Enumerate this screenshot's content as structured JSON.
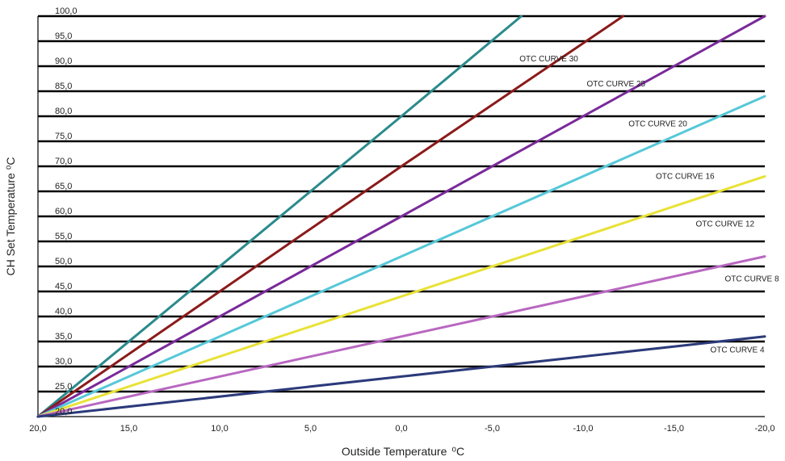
{
  "chart_data": {
    "type": "line",
    "xlabel": "Outside Temperature",
    "xlabel_unit": "⁰C",
    "ylabel": "CH Set Temperature",
    "ylabel_unit": "⁰C",
    "xlim": [
      20,
      -20
    ],
    "ylim": [
      20,
      100
    ],
    "x_ticks": [
      20,
      15,
      10,
      5,
      0,
      -5,
      -10,
      -15,
      -20
    ],
    "x_tick_labels": [
      "20,0",
      "15,0",
      "10,0",
      "5,0",
      "0,0",
      "-5,0",
      "-10,0",
      "-15,0",
      "-20,0"
    ],
    "y_ticks": [
      20,
      25,
      30,
      35,
      40,
      45,
      50,
      55,
      60,
      65,
      70,
      75,
      80,
      85,
      90,
      95,
      100
    ],
    "y_tick_labels": [
      "20,0",
      "25,0",
      "30,0",
      "35,0",
      "40,0",
      "45,0",
      "50,0",
      "55,0",
      "60,0",
      "65,0",
      "70,0",
      "75,0",
      "80,0",
      "85,0",
      "90,0",
      "95,0",
      "100,0"
    ],
    "grid": true,
    "series": [
      {
        "name": "OTC CURVE 30",
        "color": "#2a8a8c",
        "label_at": [
          -6.5,
          91
        ],
        "x": [
          20,
          0,
          -6.6
        ],
        "y": [
          20,
          80,
          100
        ]
      },
      {
        "name": "OTC CURVE 25",
        "color": "#8b1a1a",
        "label_at": [
          -10.2,
          86
        ],
        "x": [
          20,
          0,
          -12.2
        ],
        "y": [
          20,
          70,
          100
        ]
      },
      {
        "name": "OTC CURVE 20",
        "color": "#7a2a9a",
        "label_at": [
          -12.5,
          78
        ],
        "x": [
          20,
          0,
          -20
        ],
        "y": [
          20,
          60,
          100
        ]
      },
      {
        "name": "OTC CURVE 16",
        "color": "#55c8d8",
        "label_at": [
          -14,
          67.5
        ],
        "x": [
          20,
          0,
          -20
        ],
        "y": [
          20,
          52,
          84
        ]
      },
      {
        "name": "OTC CURVE 12",
        "color": "#e8e236",
        "label_at": [
          -16.2,
          58
        ],
        "x": [
          20,
          0,
          -20
        ],
        "y": [
          20,
          44,
          68
        ]
      },
      {
        "name": "OTC CURVE 8",
        "color": "#b867c0",
        "label_at": [
          -17.8,
          47
        ],
        "x": [
          20,
          0,
          -20
        ],
        "y": [
          20,
          36,
          52
        ]
      },
      {
        "name": "OTC CURVE 4",
        "color": "#2b3a7a",
        "label_at": [
          -17,
          32.8
        ],
        "x": [
          20,
          0,
          -20
        ],
        "y": [
          20,
          28,
          36
        ]
      }
    ]
  }
}
